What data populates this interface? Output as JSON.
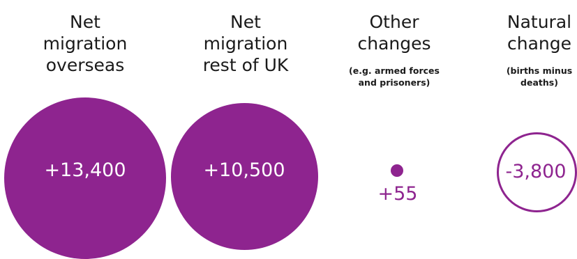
{
  "colors": {
    "bubble_fill": "#8e248f",
    "heading_text": "#1a1a1a",
    "value_on_fill": "#ffffff",
    "value_on_white": "#8e248f"
  },
  "components": [
    {
      "heading": [
        "Net",
        "migration",
        "overseas"
      ],
      "note": [],
      "value": "+13,400"
    },
    {
      "heading": [
        "Net",
        "migration",
        "rest of UK"
      ],
      "note": [],
      "value": "+10,500"
    },
    {
      "heading": [
        "Other",
        "changes"
      ],
      "note": [
        "(e.g. armed forces",
        "and prisoners)"
      ],
      "value": "+55"
    },
    {
      "heading": [
        "Natural",
        "change"
      ],
      "note": [
        "(births minus",
        "deaths)"
      ],
      "value": "-3,800"
    }
  ]
}
